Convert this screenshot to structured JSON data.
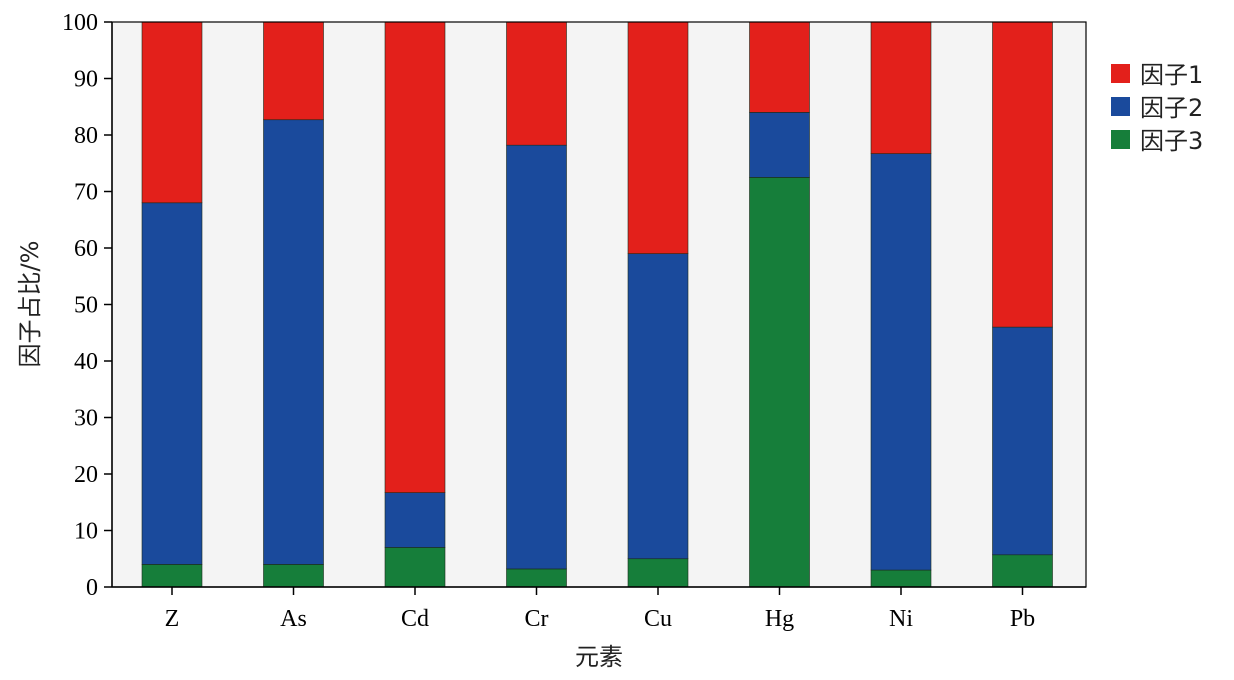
{
  "chart_data": {
    "type": "bar",
    "stacked": true,
    "xlabel": "元素",
    "ylabel": "因子占比/%",
    "ylim": [
      0,
      100
    ],
    "yticks": [
      0,
      10,
      20,
      30,
      40,
      50,
      60,
      70,
      80,
      90,
      100
    ],
    "categories": [
      "Z",
      "As",
      "Cd",
      "Cr",
      "Cu",
      "Hg",
      "Ni",
      "Pb"
    ],
    "series": [
      {
        "name": "因子1",
        "color": "#e3201b",
        "values": [
          32.0,
          17.3,
          83.3,
          21.8,
          41.0,
          16.0,
          23.3,
          54.0
        ]
      },
      {
        "name": "因子2",
        "color": "#1a4a9c",
        "values": [
          64.0,
          78.7,
          9.7,
          75.0,
          54.0,
          11.5,
          73.7,
          40.3
        ]
      },
      {
        "name": "因子3",
        "color": "#167e3a",
        "values": [
          4.0,
          4.0,
          7.0,
          3.2,
          5.0,
          72.5,
          3.0,
          5.7
        ]
      }
    ],
    "legend_position": "right",
    "grid": false
  }
}
